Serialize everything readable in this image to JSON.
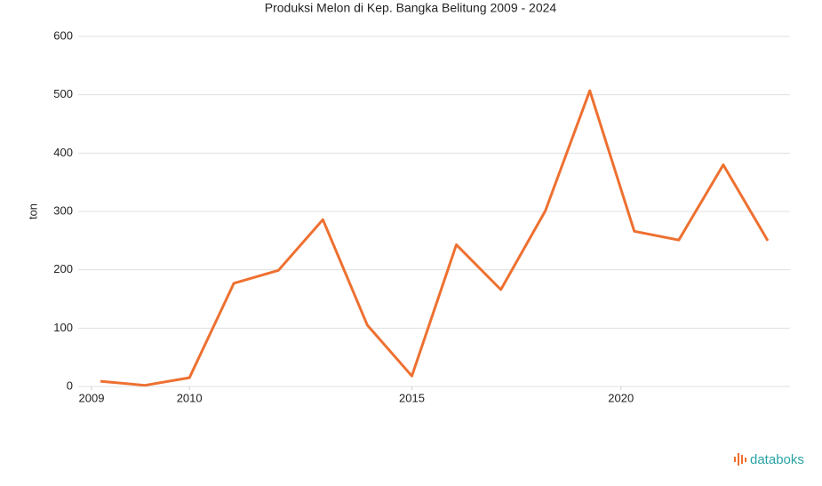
{
  "chart_data": {
    "type": "line",
    "title": "Produksi Melon di Kep. Bangka Belitung 2009 - 2024",
    "y_label": "ton",
    "x": [
      2009,
      2010,
      2011,
      2012,
      2013,
      2014,
      2015,
      2016,
      2017,
      2018,
      2019,
      2020,
      2021,
      2022,
      2023,
      2024
    ],
    "series": [
      {
        "name": "Produksi Melon",
        "color": "#ee7030",
        "values": [
          9,
          2,
          15,
          177,
          199,
          286,
          105,
          18,
          243,
          166,
          301,
          507,
          266,
          251,
          380,
          250
        ]
      }
    ],
    "xlim": [
      2008.5,
      2024.5
    ],
    "xticks": [
      {
        "value": 2008.8,
        "label": "2009"
      },
      {
        "value": 2011,
        "label": "2010"
      },
      {
        "value": 2016,
        "label": "2015"
      },
      {
        "value": 2020.7,
        "label": "2020"
      }
    ],
    "ylim": [
      0,
      600
    ],
    "yticks": [
      0,
      100,
      200,
      300,
      400,
      500,
      600
    ],
    "grid": true,
    "brand": "databoks"
  }
}
